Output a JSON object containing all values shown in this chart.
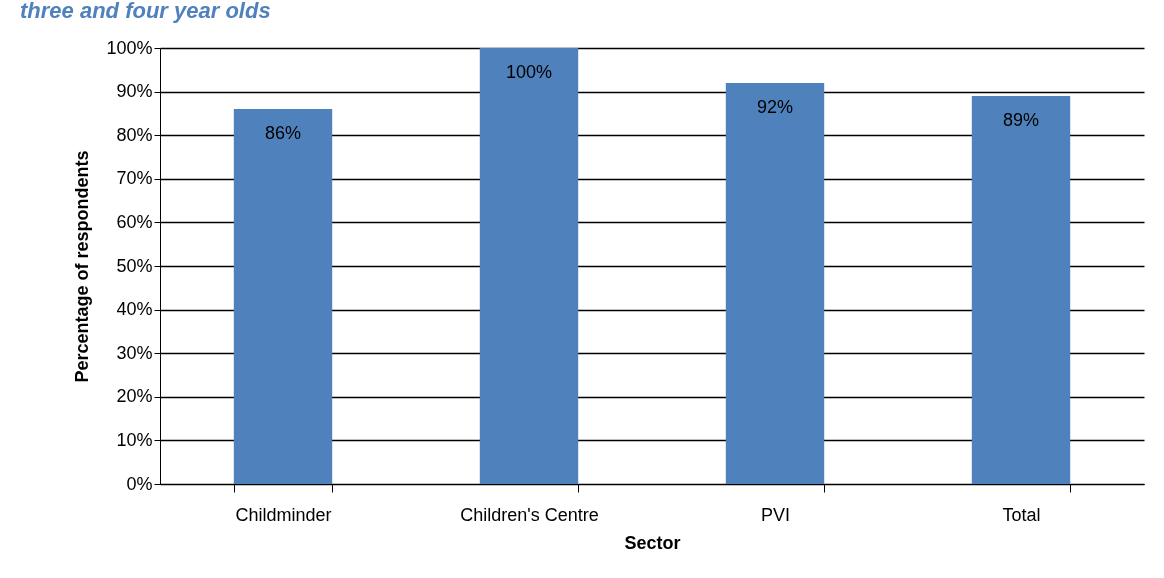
{
  "chart_data": {
    "type": "bar",
    "title": "three and four year olds",
    "xlabel": "Sector",
    "ylabel": "Percentage of respondents",
    "categories": [
      "Childminder",
      "Children's Centre",
      "PVI",
      "Total"
    ],
    "values": [
      86,
      100,
      92,
      89
    ],
    "color": "#4f81bd",
    "value_labels": [
      "86%",
      "100%",
      "92%",
      "89%"
    ],
    "ylim": [
      0,
      100
    ],
    "yticks": [
      {
        "value": 0,
        "label": "0%"
      },
      {
        "value": 10,
        "label": "10%"
      },
      {
        "value": 20,
        "label": "20%"
      },
      {
        "value": 30,
        "label": "30%"
      },
      {
        "value": 40,
        "label": "40%"
      },
      {
        "value": 50,
        "label": "50%"
      },
      {
        "value": 60,
        "label": "60%"
      },
      {
        "value": 70,
        "label": "70%"
      },
      {
        "value": 80,
        "label": "80%"
      },
      {
        "value": 90,
        "label": "90%"
      },
      {
        "value": 100,
        "label": "100%"
      }
    ],
    "grid": "y"
  }
}
